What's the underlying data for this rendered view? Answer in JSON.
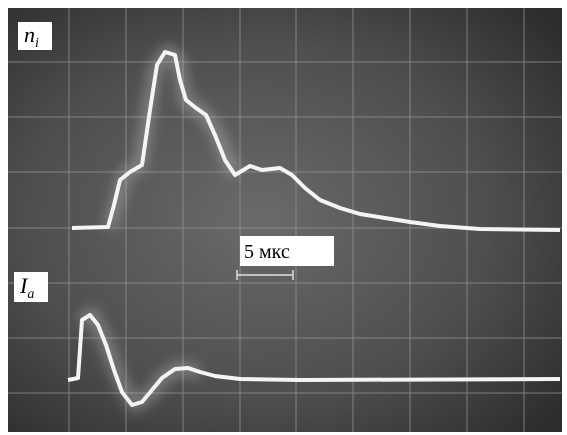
{
  "labels": {
    "top": {
      "symbol": "n",
      "subscript": "i"
    },
    "bottom": {
      "symbol": "I",
      "subscript": "a"
    },
    "scale": "5 мкс"
  }
}
